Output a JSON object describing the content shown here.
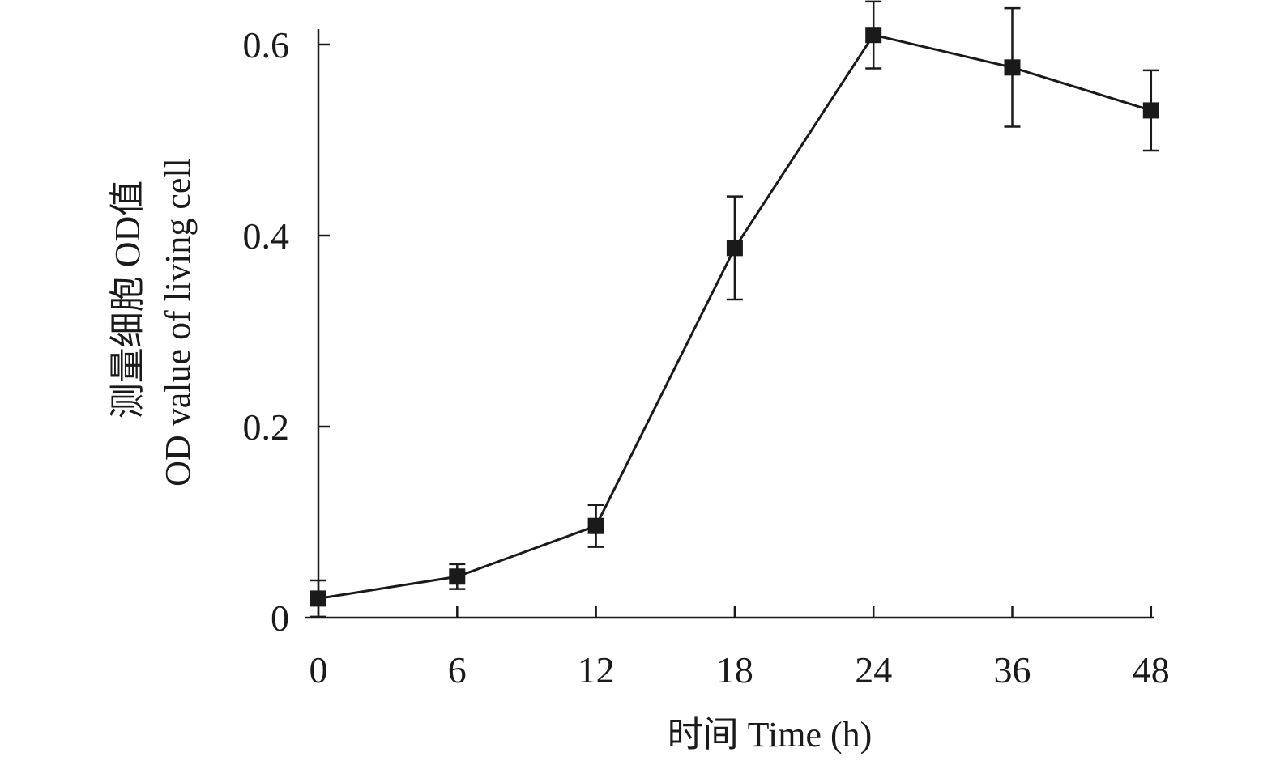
{
  "chart_data": {
    "type": "line",
    "categories": [
      "0",
      "6",
      "12",
      "18",
      "24",
      "36",
      "48"
    ],
    "series": [
      {
        "values": [
          0.02,
          0.043,
          0.096,
          0.387,
          0.61,
          0.576,
          0.531
        ],
        "errors": [
          0.019,
          0.013,
          0.022,
          0.054,
          0.035,
          0.062,
          0.042
        ]
      }
    ],
    "xlabel": "时间 Time (h)",
    "ylabel_lines": [
      "测量细胞 OD值",
      "OD value of living cell"
    ],
    "yticks": [
      "0",
      "0.2",
      "0.4",
      "0.6"
    ],
    "ylim": [
      0,
      0.6
    ],
    "grid": false,
    "marker": "square",
    "colors": {
      "series": "#1a1a1a",
      "axis": "#1a1a1a"
    }
  }
}
